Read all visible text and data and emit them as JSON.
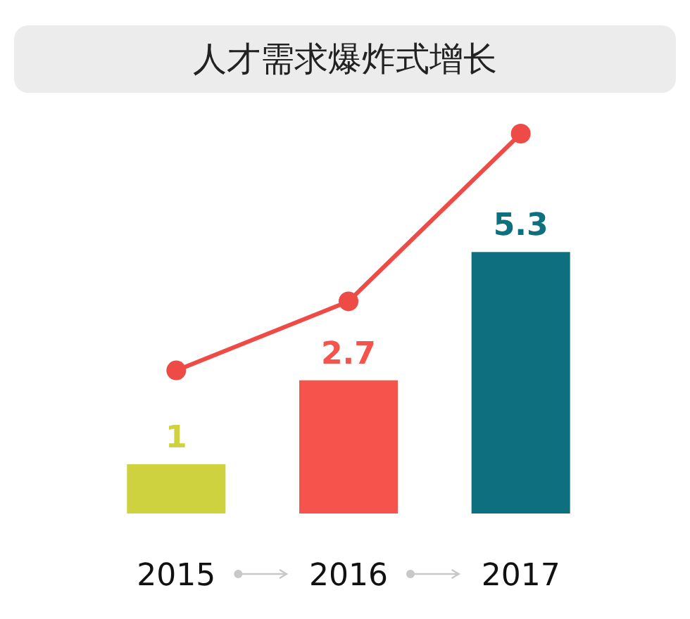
{
  "chart_data": {
    "type": "bar",
    "title": "人才需求爆炸式增长",
    "categories": [
      "2015",
      "2016",
      "2017"
    ],
    "series": [
      {
        "colors": [
          "#cdd23e",
          "#f6534c",
          "#0e6f7f"
        ],
        "values": [
          1,
          2.7,
          5.3
        ],
        "value_labels": [
          "1",
          "2.7",
          "5.3"
        ]
      },
      {
        "type": "line",
        "color": "#ef4b46",
        "values": [
          2.9,
          4.3,
          7.7
        ],
        "marker": "circle"
      }
    ],
    "tick_labels": "x"
  }
}
